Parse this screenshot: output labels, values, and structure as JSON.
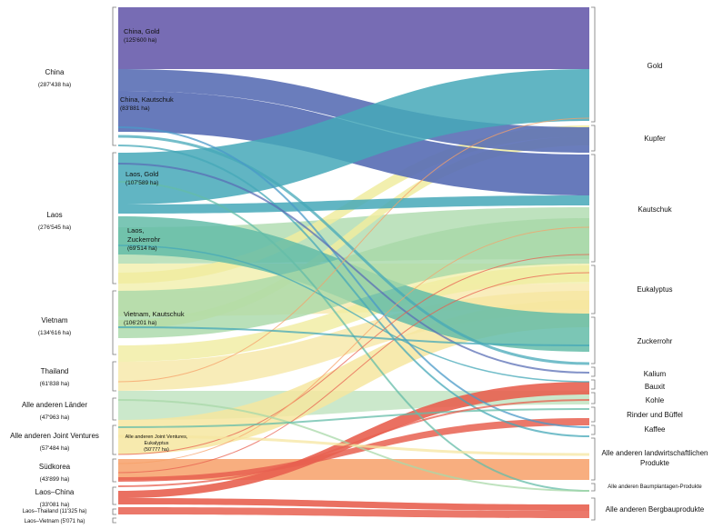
{
  "left_nodes": [
    {
      "name": "China",
      "value": "(287'438 ha)"
    },
    {
      "name": "Laos",
      "value": "(276'545 ha)"
    },
    {
      "name": "Vietnam",
      "value": "(134'616 ha)"
    },
    {
      "name": "Thailand",
      "value": "(61'838 ha)"
    },
    {
      "name": "Alle anderen Länder",
      "value": "(47'963 ha)"
    },
    {
      "name": "Alle anderen Joint Ventures",
      "value": "(57'484 ha)"
    },
    {
      "name": "Südkorea",
      "value": "(43'899 ha)"
    },
    {
      "name": "Laos–China",
      "value": "(33'081 ha)"
    },
    {
      "name": "Laos–Thailand",
      "value": "(11'325 ha)"
    },
    {
      "name": "Laos–Vietnam",
      "value": "(5'071 ha)"
    }
  ],
  "inner_labels": [
    {
      "name": "China, Gold",
      "value": "(125'600 ha)"
    },
    {
      "name": "China, Kautschuk",
      "value": "(83'881 ha)"
    },
    {
      "name": "Laos, Gold",
      "value": "(107'589 ha)"
    },
    {
      "name": "Laos,\nZuckerrohr",
      "value": "(69'514 ha)"
    },
    {
      "name": "Vietnam, Kautschuk",
      "value": "(106'201 ha)"
    },
    {
      "name": "Alle anderen Joint Ventures,\nEukalyptus",
      "value": "(50'777 ha)"
    }
  ],
  "right_nodes": [
    "Gold",
    "Kupfer",
    "Kautschuk",
    "Eukalyptus",
    "Zuckerrohr",
    "Kalium",
    "Bauxit",
    "Kohle",
    "Rinder und Büffel",
    "Kaffee",
    "Alle anderen landwirtschaftlichen Produkte",
    "Alle anderen Baumplantagen-Produkte",
    "Alle anderen Bergbauprodukte"
  ],
  "colors": {
    "purple": "#6b5fae",
    "blue_purple": "#5a6fb5",
    "teal": "#45a8b8",
    "green_teal": "#64bca8",
    "light_green": "#a8d8a8",
    "pale_yellow": "#f0eca0",
    "yellow": "#f6e6a0",
    "orange": "#f7a068",
    "red": "#e86050"
  }
}
